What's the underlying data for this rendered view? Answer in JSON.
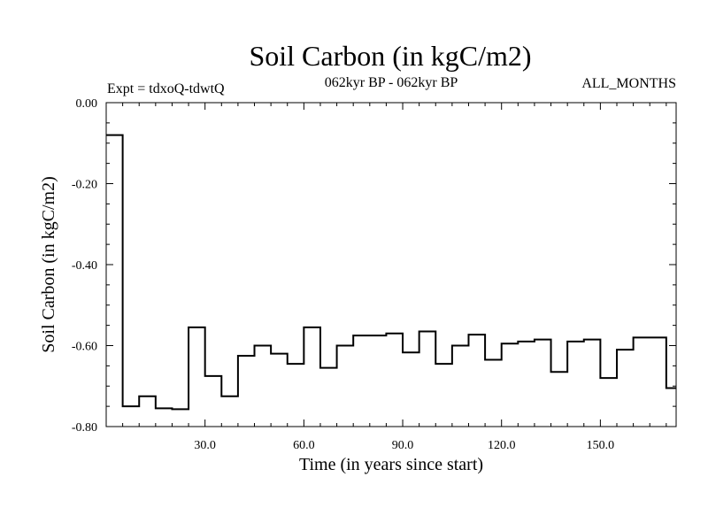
{
  "header": {
    "title": "Soil Carbon (in kgC/m2)",
    "experiment": "Expt = tdxoQ-tdwtQ",
    "period": "062kyr BP - 062kyr BP",
    "months": "ALL_MONTHS"
  },
  "chart_data": {
    "type": "line",
    "style": "step",
    "title": "Soil Carbon (in kgC/m2)",
    "xlabel": "Time (in years since start)",
    "ylabel": "Soil Carbon (in kgC/m2)",
    "xlim": [
      0,
      173
    ],
    "ylim": [
      -0.8,
      0.0
    ],
    "x_ticks": [
      30,
      60,
      90,
      120,
      150
    ],
    "x_tick_labels": [
      "30.0",
      "60.0",
      "90.0",
      "120.0",
      "150.0"
    ],
    "y_ticks": [
      0.0,
      -0.2,
      -0.4,
      -0.6,
      -0.8
    ],
    "y_tick_labels": [
      "0.00",
      "-0.20",
      "-0.40",
      "-0.60",
      "-0.80"
    ],
    "grid": false,
    "series": [
      {
        "name": "Soil Carbon",
        "x": [
          0,
          5,
          10,
          15,
          20,
          25,
          30,
          35,
          40,
          45,
          50,
          55,
          60,
          65,
          70,
          75,
          80,
          85,
          90,
          95,
          100,
          105,
          110,
          115,
          120,
          125,
          130,
          135,
          140,
          145,
          150,
          155,
          160,
          165,
          170
        ],
        "values": [
          -0.08,
          -0.75,
          -0.725,
          -0.755,
          -0.757,
          -0.555,
          -0.675,
          -0.725,
          -0.625,
          -0.6,
          -0.62,
          -0.645,
          -0.555,
          -0.655,
          -0.6,
          -0.575,
          -0.575,
          -0.57,
          -0.617,
          -0.565,
          -0.645,
          -0.6,
          -0.573,
          -0.635,
          -0.595,
          -0.59,
          -0.585,
          -0.665,
          -0.59,
          -0.585,
          -0.68,
          -0.61,
          -0.58,
          -0.58,
          -0.705
        ]
      }
    ]
  }
}
